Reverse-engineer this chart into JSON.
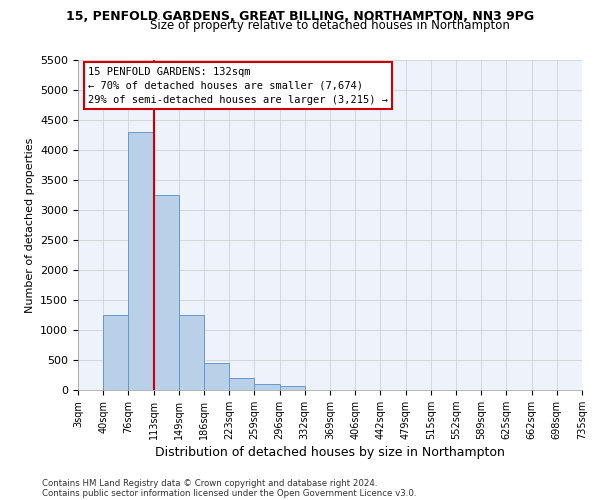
{
  "title1": "15, PENFOLD GARDENS, GREAT BILLING, NORTHAMPTON, NN3 9PG",
  "title2": "Size of property relative to detached houses in Northampton",
  "xlabel": "Distribution of detached houses by size in Northampton",
  "ylabel": "Number of detached properties",
  "footnote1": "Contains HM Land Registry data © Crown copyright and database right 2024.",
  "footnote2": "Contains public sector information licensed under the Open Government Licence v3.0.",
  "bin_labels": [
    "3sqm",
    "40sqm",
    "76sqm",
    "113sqm",
    "149sqm",
    "186sqm",
    "223sqm",
    "259sqm",
    "296sqm",
    "332sqm",
    "369sqm",
    "406sqm",
    "442sqm",
    "479sqm",
    "515sqm",
    "552sqm",
    "589sqm",
    "625sqm",
    "662sqm",
    "698sqm",
    "735sqm"
  ],
  "bar_values": [
    0,
    1250,
    4300,
    3250,
    1250,
    450,
    200,
    100,
    65,
    0,
    0,
    0,
    0,
    0,
    0,
    0,
    0,
    0,
    0,
    0
  ],
  "bar_color": "#b8d0e8",
  "bar_edge_color": "#6699cc",
  "vline_x": 3,
  "vline_color": "#cc0000",
  "ylim_max": 5500,
  "yticks": [
    0,
    500,
    1000,
    1500,
    2000,
    2500,
    3000,
    3500,
    4000,
    4500,
    5000,
    5500
  ],
  "annotation_line1": "15 PENFOLD GARDENS: 132sqm",
  "annotation_line2": "← 70% of detached houses are smaller (7,674)",
  "annotation_line3": "29% of semi-detached houses are larger (3,215) →",
  "annotation_box_color": "#cc0000",
  "grid_color": "#cccccc",
  "background_color": "#eef2fa"
}
